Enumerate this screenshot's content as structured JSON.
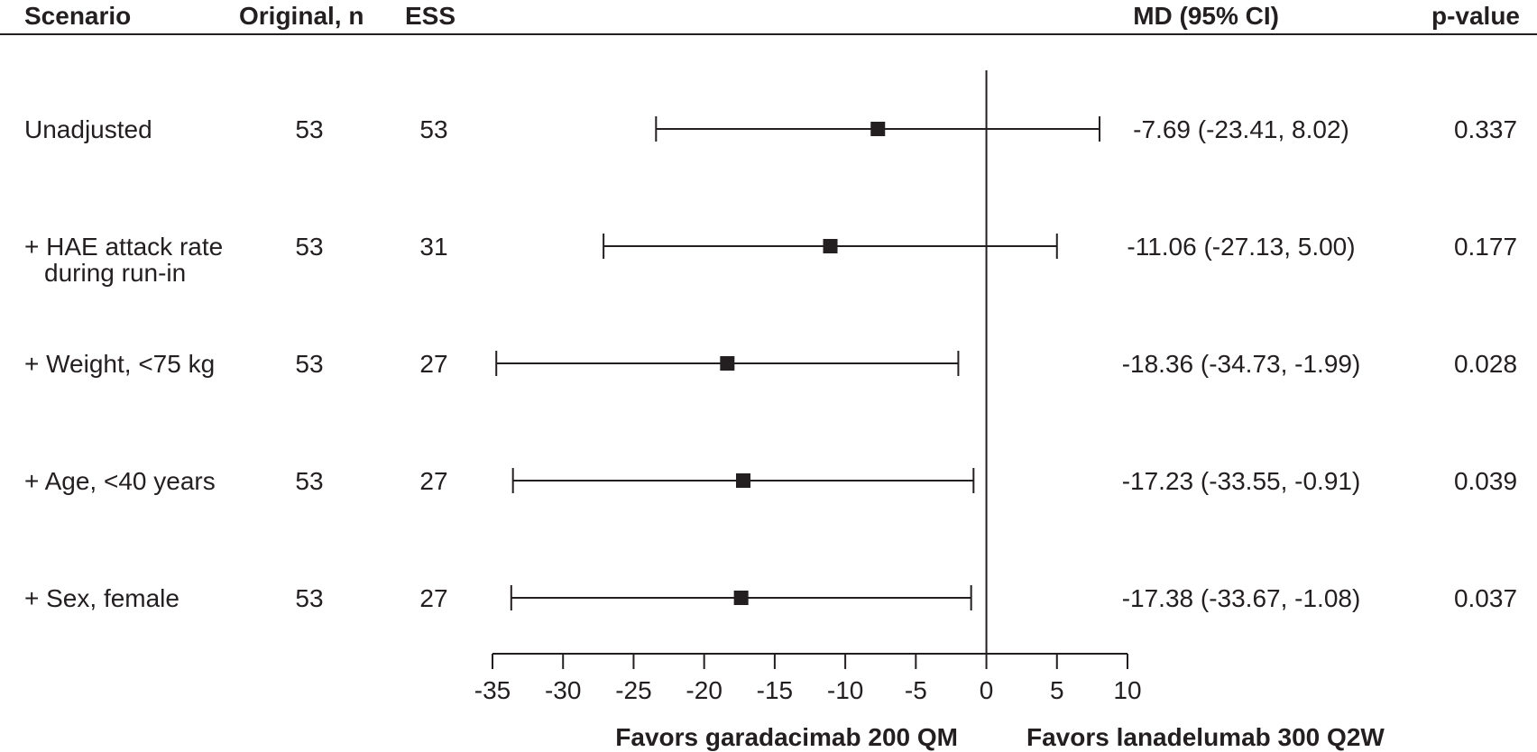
{
  "headers": {
    "scenario": "Scenario",
    "original_n": "Original, n",
    "ess": "ESS",
    "md_ci": "MD (95% CI)",
    "p_value": "p-value"
  },
  "favors": {
    "left": "Favors garadacimab 200 QM",
    "right": "Favors lanadelumab 300 Q2W"
  },
  "chart_data": {
    "type": "forest",
    "xlim": [
      -35,
      10
    ],
    "xticks": [
      -35,
      -30,
      -25,
      -20,
      -15,
      -10,
      -5,
      0,
      5,
      10
    ],
    "xtick_labels": [
      "-35",
      "-30",
      "-25",
      "-20",
      "-15",
      "-10",
      "-5",
      "0",
      "5",
      "10"
    ],
    "reference_line": 0,
    "rows": [
      {
        "scenario": [
          "Unadjusted"
        ],
        "original_n": "53",
        "ess": "53",
        "md": -7.69,
        "lower": -23.41,
        "upper": 8.02,
        "md_ci_text": "-7.69 (-23.41, 8.02)",
        "p_value": "0.337"
      },
      {
        "scenario": [
          "+ HAE attack rate",
          "during run-in"
        ],
        "original_n": "53",
        "ess": "31",
        "md": -11.06,
        "lower": -27.13,
        "upper": 5.0,
        "md_ci_text": "-11.06 (-27.13, 5.00)",
        "p_value": "0.177"
      },
      {
        "scenario": [
          "+ Weight, <75 kg"
        ],
        "original_n": "53",
        "ess": "27",
        "md": -18.36,
        "lower": -34.73,
        "upper": -1.99,
        "md_ci_text": "-18.36 (-34.73, -1.99)",
        "p_value": "0.028"
      },
      {
        "scenario": [
          "+ Age, <40 years"
        ],
        "original_n": "53",
        "ess": "27",
        "md": -17.23,
        "lower": -33.55,
        "upper": -0.91,
        "md_ci_text": "-17.23 (-33.55, -0.91)",
        "p_value": "0.039"
      },
      {
        "scenario": [
          "+ Sex, female"
        ],
        "original_n": "53",
        "ess": "27",
        "md": -17.38,
        "lower": -33.67,
        "upper": -1.08,
        "md_ci_text": "-17.38 (-33.67, -1.08)",
        "p_value": "0.037"
      }
    ]
  }
}
